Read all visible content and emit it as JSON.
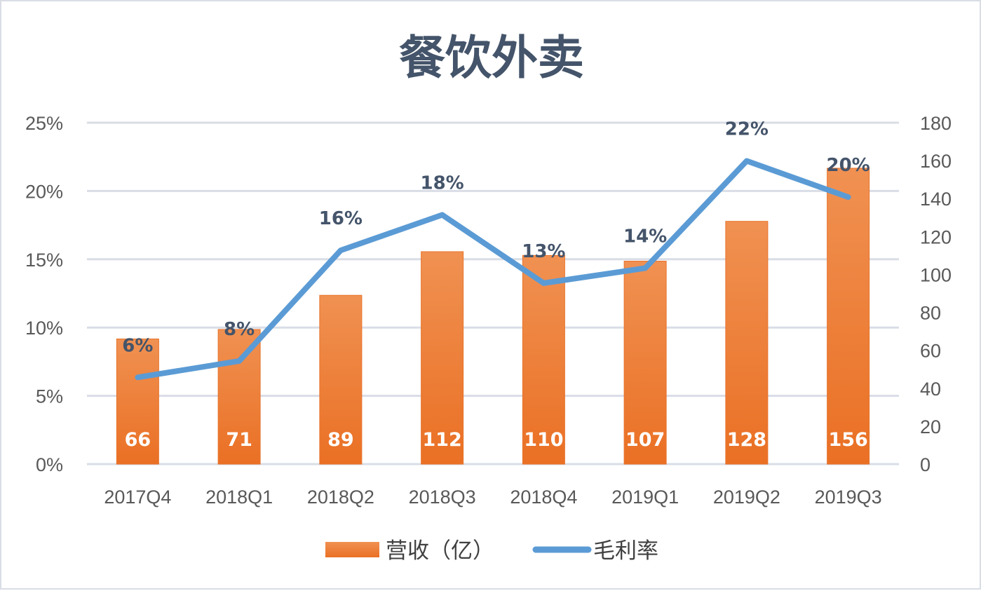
{
  "chart_data": {
    "type": "bar",
    "title": "餐饮外卖",
    "categories": [
      "2017Q4",
      "2018Q1",
      "2018Q2",
      "2018Q3",
      "2018Q4",
      "2019Q1",
      "2019Q2",
      "2019Q3"
    ],
    "series": [
      {
        "name": "营收（亿）",
        "type": "bar",
        "axis": "right",
        "values": [
          66,
          71,
          89,
          112,
          110,
          107,
          128,
          156
        ],
        "labels": [
          "66",
          "71",
          "89",
          "112",
          "110",
          "107",
          "128",
          "156"
        ],
        "color": "#ed7d31"
      },
      {
        "name": "毛利率",
        "type": "line",
        "axis": "left",
        "values": [
          0.0635,
          0.0755,
          0.1565,
          0.1825,
          0.1325,
          0.1435,
          0.222,
          0.1955
        ],
        "labels": [
          "6%",
          "8%",
          "16%",
          "18%",
          "13%",
          "14%",
          "22%",
          "20%"
        ],
        "color": "#5b9bd5"
      }
    ],
    "y_left": {
      "ylim": [
        0,
        0.25
      ],
      "ticks": [
        "0%",
        "5%",
        "10%",
        "15%",
        "20%",
        "25%"
      ]
    },
    "y_right": {
      "ylim": [
        0,
        180
      ],
      "ticks": [
        "0",
        "20",
        "40",
        "60",
        "80",
        "100",
        "120",
        "140",
        "160",
        "180"
      ]
    },
    "grid": true,
    "legend": "bottom"
  }
}
